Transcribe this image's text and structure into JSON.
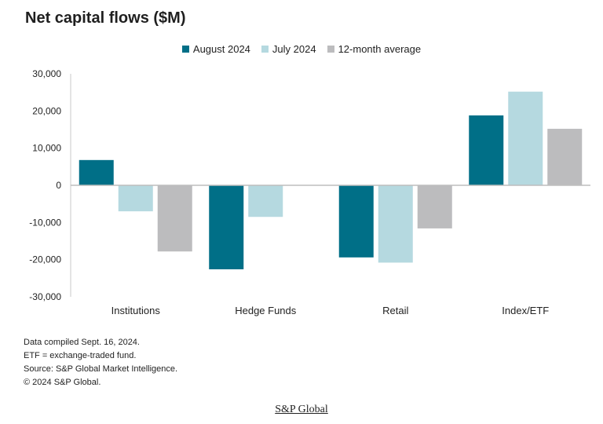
{
  "chart_data": {
    "type": "bar",
    "title": "Net capital flows ($M)",
    "xlabel": "",
    "ylabel": "",
    "ylim": [
      -30000,
      30000
    ],
    "yticks": [
      30000,
      20000,
      10000,
      0,
      -10000,
      -20000,
      -30000
    ],
    "ytick_labels": [
      "30,000",
      "20,000",
      "10,000",
      "0",
      "-10,000",
      "-20,000",
      "-30,000"
    ],
    "categories": [
      "Institutions",
      "Hedge Funds",
      "Retail",
      "Index/ETF"
    ],
    "series": [
      {
        "name": "August 2024",
        "color": "#006f87",
        "values": [
          6800,
          -22600,
          -19400,
          18800
        ]
      },
      {
        "name": "July 2024",
        "color": "#b5d9e0",
        "values": [
          -7000,
          -8500,
          -20800,
          25200
        ]
      },
      {
        "name": "12-month average",
        "color": "#bcbcbe",
        "values": [
          -17800,
          -100,
          -11600,
          15200
        ]
      }
    ],
    "legend_position": "top-center",
    "grid": false
  },
  "notes": [
    "Data compiled Sept. 16, 2024.",
    "ETF = exchange-traded fund.",
    "Source: S&P Global Market Intelligence.",
    "© 2024 S&P Global."
  ],
  "logo_text": "S&P Global"
}
